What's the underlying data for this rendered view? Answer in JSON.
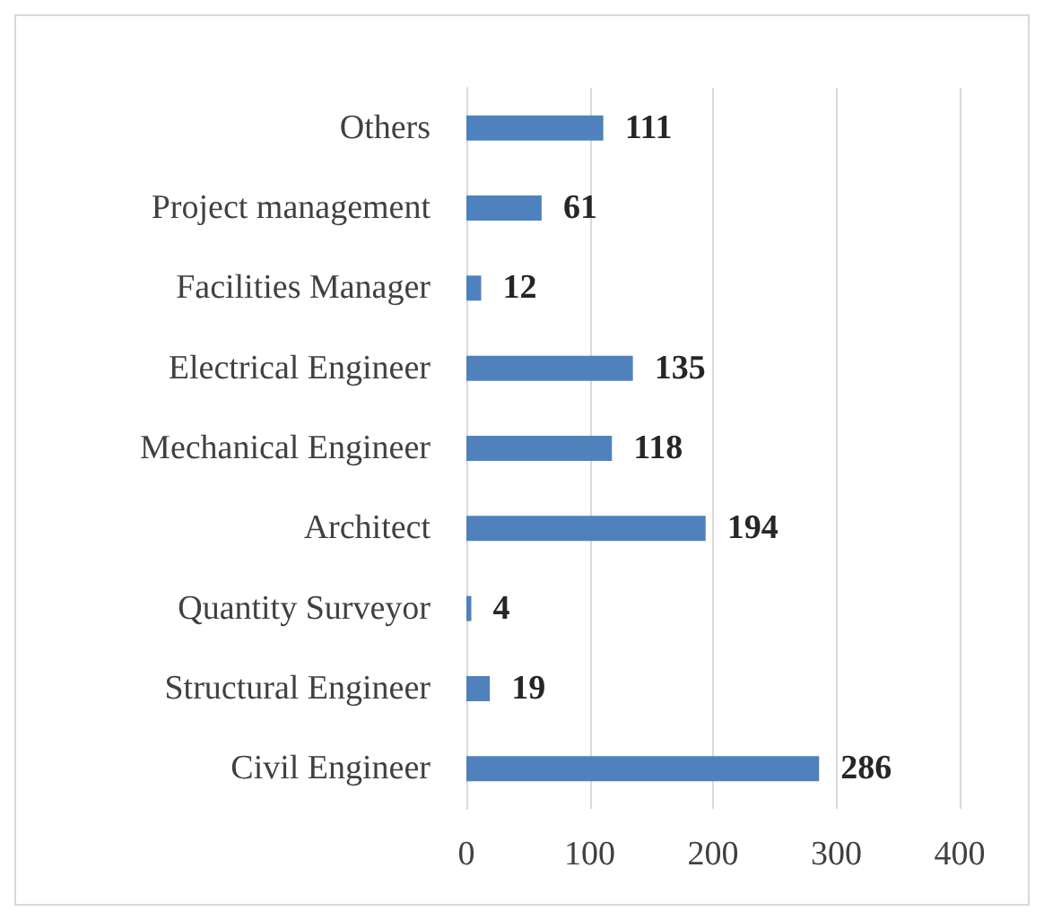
{
  "chart_data": {
    "type": "bar",
    "orientation": "horizontal",
    "categories": [
      "Others",
      "Project management",
      "Facilities Manager",
      "Electrical Engineer",
      "Mechanical Engineer",
      "Architect",
      "Quantity Surveyor",
      "Structural Engineer",
      "Civil Engineer"
    ],
    "values": [
      111,
      61,
      12,
      135,
      118,
      194,
      4,
      19,
      286
    ],
    "color": "#4f81bd",
    "xlim": [
      0,
      400
    ],
    "xticks": [
      0,
      100,
      200,
      300,
      400
    ],
    "grid": "x",
    "data_labels": true
  }
}
